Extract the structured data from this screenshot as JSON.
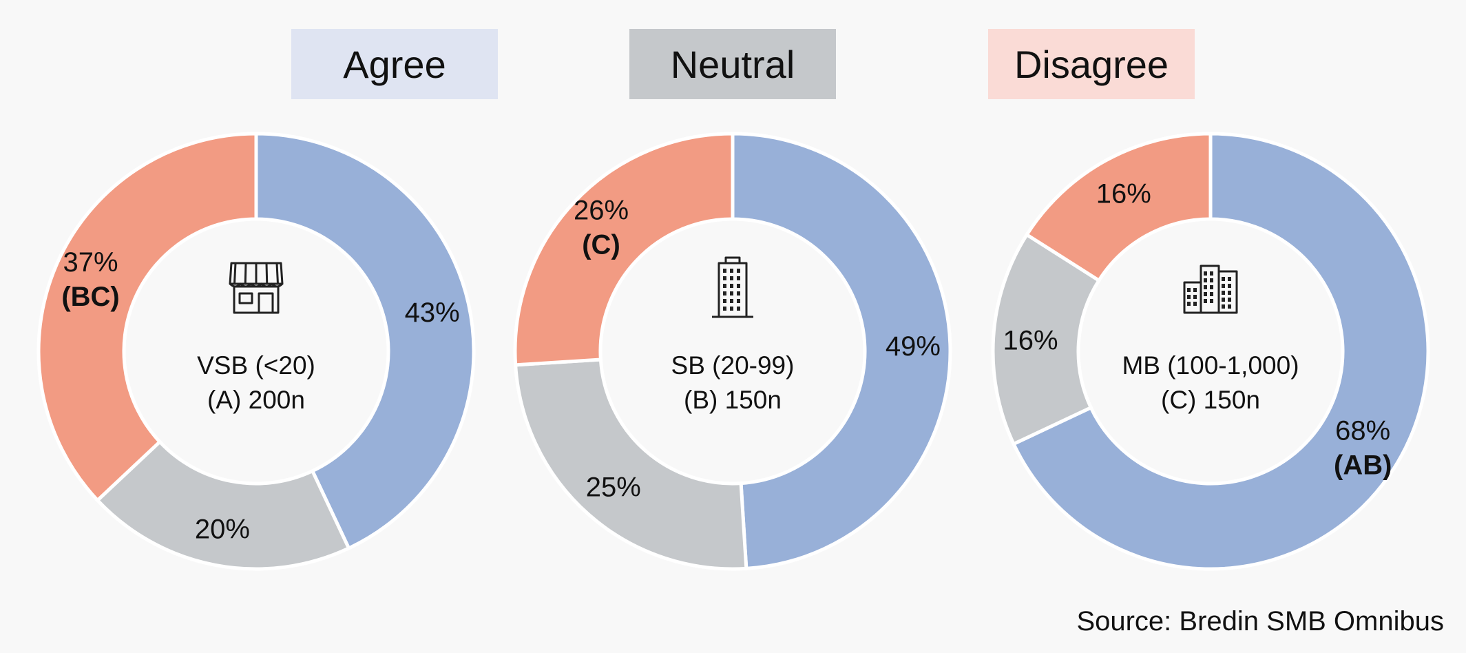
{
  "legend": {
    "agree": "Agree",
    "neutral": "Neutral",
    "disagree": "Disagree"
  },
  "colors": {
    "agree": "#98b0d8",
    "neutral": "#c5c8cb",
    "disagree": "#f29b83"
  },
  "icons": [
    "storefront-icon",
    "office-building-icon",
    "city-buildings-icon"
  ],
  "source": "Source: Bredin SMB Omnibus",
  "chart_data": [
    {
      "type": "pie",
      "center_line1": "VSB (<20)",
      "center_line2": "(A) 200n",
      "slices": [
        {
          "category": "Agree",
          "value": 43,
          "label": "43%",
          "sig": ""
        },
        {
          "category": "Neutral",
          "value": 20,
          "label": "20%",
          "sig": ""
        },
        {
          "category": "Disagree",
          "value": 37,
          "label": "37%",
          "sig": "(BC)"
        }
      ]
    },
    {
      "type": "pie",
      "center_line1": "SB (20-99)",
      "center_line2": "(B) 150n",
      "slices": [
        {
          "category": "Agree",
          "value": 49,
          "label": "49%",
          "sig": ""
        },
        {
          "category": "Neutral",
          "value": 25,
          "label": "25%",
          "sig": ""
        },
        {
          "category": "Disagree",
          "value": 26,
          "label": "26%",
          "sig": "(C)"
        }
      ]
    },
    {
      "type": "pie",
      "center_line1": "MB (100-1,000)",
      "center_line2": "(C) 150n",
      "slices": [
        {
          "category": "Agree",
          "value": 68,
          "label": "68%",
          "sig": "(AB)"
        },
        {
          "category": "Neutral",
          "value": 16,
          "label": "16%",
          "sig": ""
        },
        {
          "category": "Disagree",
          "value": 16,
          "label": "16%",
          "sig": ""
        }
      ]
    }
  ]
}
